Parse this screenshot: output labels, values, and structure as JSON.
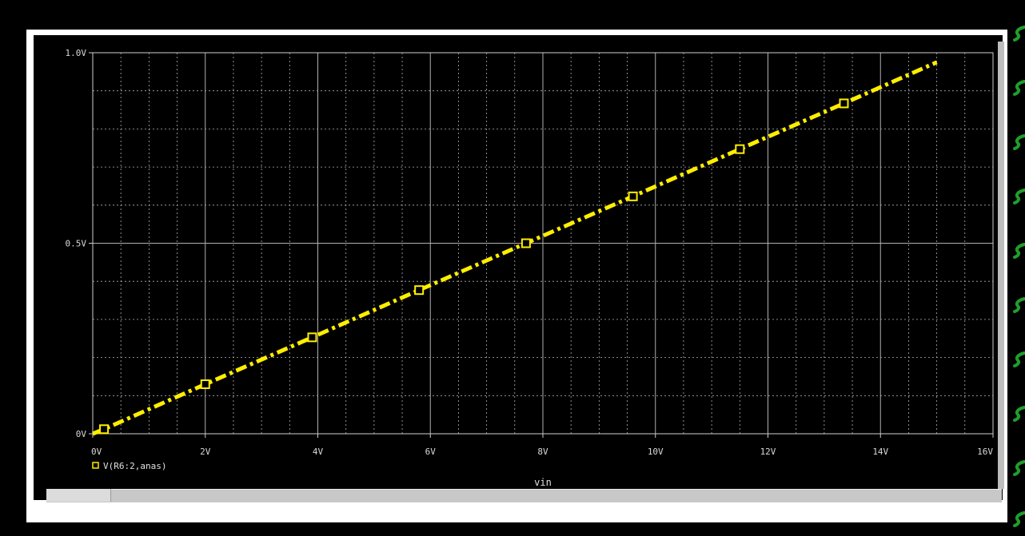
{
  "colors": {
    "background": "#000000",
    "frame": "#ffffff",
    "grid": "#b0b0b0",
    "trace": "#ffee00",
    "side_marks": "#1f9e2a"
  },
  "chart_data": {
    "type": "line",
    "x": [
      0,
      0.2,
      2.0,
      3.9,
      5.8,
      7.7,
      9.6,
      11.5,
      13.35,
      15
    ],
    "series": [
      {
        "name": "V(R6:2,anas)",
        "values": [
          0,
          0.012,
          0.13,
          0.253,
          0.377,
          0.5,
          0.623,
          0.747,
          0.867,
          0.975
        ],
        "marker_indices": [
          1,
          2,
          3,
          4,
          5,
          6,
          7,
          8
        ],
        "style": "dash-dot",
        "color": "#ffee00"
      }
    ],
    "xlabel": "vin",
    "ylabel": "",
    "xlim": [
      0,
      16
    ],
    "ylim": [
      0,
      1.0
    ],
    "xticks": [
      0,
      2,
      4,
      6,
      8,
      10,
      12,
      14,
      16
    ],
    "xtick_labels": [
      "0V",
      "2V",
      "4V",
      "6V",
      "8V",
      "10V",
      "12V",
      "14V",
      "16V"
    ],
    "yticks": [
      0,
      0.5,
      1.0
    ],
    "ytick_labels": [
      "0V",
      "0.5V",
      "1.0V"
    ],
    "x_minor_step": 0.5,
    "y_minor_step": 0.1,
    "grid": true,
    "legend": "bottom-left"
  }
}
